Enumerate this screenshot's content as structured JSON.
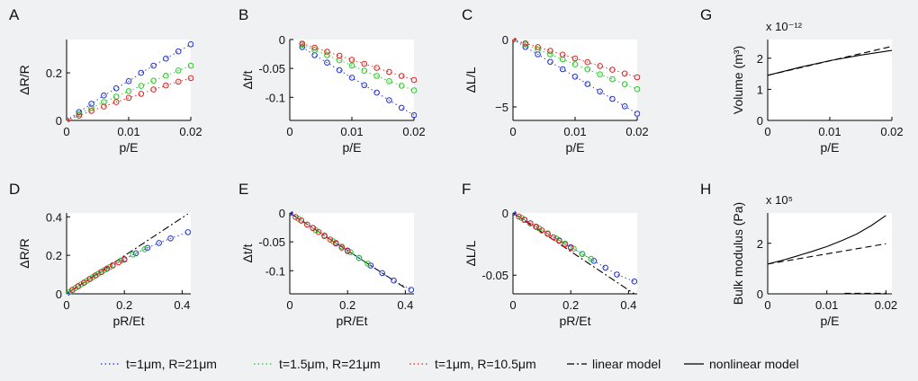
{
  "colors": {
    "blue": "#1f2fd6",
    "green": "#22cc22",
    "red": "#e02020",
    "black": "#000000",
    "background": "#f0f1f3"
  },
  "legend": {
    "position": "bottom",
    "items": [
      {
        "label": "t=1μm, R=21μm",
        "color": "#1f2fd6",
        "style": "dotted"
      },
      {
        "label": "t=1.5μm, R=21μm",
        "color": "#22cc22",
        "style": "dotted"
      },
      {
        "label": "t=1μm, R=10.5μm",
        "color": "#e02020",
        "style": "dotted"
      },
      {
        "label": "linear model",
        "color": "#000000",
        "style": "dashdot"
      },
      {
        "label": "nonlinear model",
        "color": "#000000",
        "style": "solid"
      }
    ]
  },
  "chart_data": [
    {
      "panel": "A",
      "type": "line",
      "xlabel": "p/E",
      "ylabel": "ΔR/R",
      "xlim": [
        0,
        0.02
      ],
      "ylim": [
        0,
        0.34
      ],
      "xticks": [
        0,
        0.01,
        0.02
      ],
      "xtick_labels": [
        "0",
        "0.01",
        "0.02"
      ],
      "yticks": [
        0,
        0.2
      ],
      "ytick_labels": [
        "0",
        "0.2"
      ],
      "series": [
        {
          "color": "blue",
          "x": [
            0,
            0.002,
            0.004,
            0.006,
            0.008,
            0.01,
            0.012,
            0.014,
            0.016,
            0.018,
            0.02
          ],
          "y": [
            0,
            0.035,
            0.07,
            0.105,
            0.135,
            0.165,
            0.2,
            0.23,
            0.26,
            0.29,
            0.32
          ]
        },
        {
          "color": "green",
          "x": [
            0,
            0.002,
            0.004,
            0.006,
            0.008,
            0.01,
            0.012,
            0.014,
            0.016,
            0.018,
            0.02
          ],
          "y": [
            0,
            0.026,
            0.052,
            0.077,
            0.1,
            0.123,
            0.145,
            0.167,
            0.188,
            0.21,
            0.23
          ]
        },
        {
          "color": "red",
          "x": [
            0,
            0.002,
            0.004,
            0.006,
            0.008,
            0.01,
            0.012,
            0.014,
            0.016,
            0.018,
            0.02
          ],
          "y": [
            0,
            0.02,
            0.04,
            0.058,
            0.077,
            0.095,
            0.112,
            0.13,
            0.147,
            0.163,
            0.178
          ]
        }
      ]
    },
    {
      "panel": "B",
      "type": "line",
      "xlabel": "p/E",
      "ylabel": "Δt/t",
      "xlim": [
        0,
        0.02
      ],
      "ylim": [
        -0.14,
        0
      ],
      "xticks": [
        0,
        0.01,
        0.02
      ],
      "xtick_labels": [
        "0",
        "0.01",
        "0.02"
      ],
      "yticks": [
        0,
        -0.05,
        -0.1
      ],
      "ytick_labels": [
        "0",
        "-0.05",
        "-0.1"
      ],
      "series": [
        {
          "color": "blue",
          "x": [
            0.002,
            0.004,
            0.006,
            0.008,
            0.01,
            0.012,
            0.014,
            0.016,
            0.018,
            0.02
          ],
          "y": [
            -0.013,
            -0.027,
            -0.04,
            -0.053,
            -0.066,
            -0.079,
            -0.092,
            -0.105,
            -0.118,
            -0.131
          ]
        },
        {
          "color": "green",
          "x": [
            0.002,
            0.004,
            0.006,
            0.008,
            0.01,
            0.012,
            0.014,
            0.016,
            0.018,
            0.02
          ],
          "y": [
            -0.009,
            -0.018,
            -0.027,
            -0.036,
            -0.045,
            -0.054,
            -0.063,
            -0.072,
            -0.08,
            -0.088
          ]
        },
        {
          "color": "red",
          "x": [
            0.002,
            0.004,
            0.006,
            0.008,
            0.01,
            0.012,
            0.014,
            0.016,
            0.018,
            0.02
          ],
          "y": [
            -0.007,
            -0.014,
            -0.021,
            -0.028,
            -0.035,
            -0.042,
            -0.049,
            -0.056,
            -0.063,
            -0.07
          ]
        }
      ]
    },
    {
      "panel": "C",
      "type": "line",
      "xlabel": "p/E",
      "ylabel": "ΔL/L",
      "xlim": [
        0,
        0.02
      ],
      "ylim": [
        -6,
        0
      ],
      "xticks": [
        0,
        0.01,
        0.02
      ],
      "xtick_labels": [
        "0",
        "0.01",
        "0.02"
      ],
      "yticks": [
        0,
        -5
      ],
      "ytick_labels": [
        "0",
        "−5"
      ],
      "series": [
        {
          "color": "blue",
          "x": [
            0,
            0.002,
            0.004,
            0.006,
            0.008,
            0.01,
            0.012,
            0.014,
            0.016,
            0.018,
            0.02
          ],
          "y": [
            0,
            -0.55,
            -1.1,
            -1.65,
            -2.2,
            -2.75,
            -3.3,
            -3.85,
            -4.4,
            -4.95,
            -5.5
          ]
        },
        {
          "color": "green",
          "x": [
            0,
            0.002,
            0.004,
            0.006,
            0.008,
            0.01,
            0.012,
            0.014,
            0.016,
            0.018,
            0.02
          ],
          "y": [
            0,
            -0.37,
            -0.74,
            -1.1,
            -1.47,
            -1.84,
            -2.21,
            -2.58,
            -2.94,
            -3.31,
            -3.68
          ]
        },
        {
          "color": "red",
          "x": [
            0,
            0.002,
            0.004,
            0.006,
            0.008,
            0.01,
            0.012,
            0.014,
            0.016,
            0.018,
            0.02
          ],
          "y": [
            0,
            -0.28,
            -0.56,
            -0.84,
            -1.12,
            -1.4,
            -1.68,
            -1.96,
            -2.24,
            -2.52,
            -2.8
          ]
        }
      ]
    },
    {
      "panel": "G",
      "type": "line",
      "xlabel": "p/E",
      "ylabel": "Volume (m³)",
      "y_exponent_label": "x 10⁻¹²",
      "xlim": [
        0,
        0.02
      ],
      "ylim": [
        0,
        2.6
      ],
      "xticks": [
        0,
        0.01,
        0.02
      ],
      "xtick_labels": [
        "0",
        "0.01",
        "0.02"
      ],
      "yticks": [
        0,
        1,
        2
      ],
      "ytick_labels": [
        "0",
        "1",
        "2"
      ],
      "series": [
        {
          "color": "black",
          "style": "solid",
          "x": [
            0,
            0.005,
            0.01,
            0.015,
            0.02
          ],
          "y": [
            1.45,
            1.7,
            1.92,
            2.1,
            2.25
          ]
        },
        {
          "color": "black",
          "style": "dashed",
          "x": [
            0,
            0.02
          ],
          "y": [
            1.45,
            2.38
          ]
        }
      ]
    },
    {
      "panel": "D",
      "type": "line",
      "xlabel": "pR/Et",
      "ylabel": "ΔR/R",
      "xlim": [
        0,
        0.43
      ],
      "ylim": [
        0,
        0.42
      ],
      "xticks": [
        0,
        0.2,
        0.4
      ],
      "xtick_labels": [
        "0",
        "0.2",
        "0.4"
      ],
      "yticks": [
        0,
        0.2,
        0.4
      ],
      "ytick_labels": [
        "0",
        "0.2",
        "0.4"
      ],
      "series": [
        {
          "color": "black",
          "style": "dashdot",
          "x": [
            0,
            0.42
          ],
          "y": [
            0,
            0.415
          ]
        },
        {
          "color": "blue",
          "x": [
            0,
            0.02,
            0.04,
            0.06,
            0.08,
            0.1,
            0.12,
            0.14,
            0.16,
            0.2,
            0.24,
            0.28,
            0.32,
            0.36,
            0.42
          ],
          "y": [
            0,
            0.02,
            0.039,
            0.058,
            0.077,
            0.095,
            0.113,
            0.131,
            0.148,
            0.18,
            0.211,
            0.239,
            0.264,
            0.288,
            0.32
          ]
        },
        {
          "color": "green",
          "x": [
            0.01,
            0.03,
            0.05,
            0.07,
            0.09,
            0.11,
            0.13,
            0.15,
            0.19,
            0.23,
            0.27
          ],
          "y": [
            0.01,
            0.03,
            0.049,
            0.068,
            0.087,
            0.105,
            0.123,
            0.14,
            0.174,
            0.204,
            0.232
          ]
        },
        {
          "color": "red",
          "x": [
            0.02,
            0.04,
            0.06,
            0.08,
            0.1,
            0.12,
            0.14,
            0.16,
            0.18,
            0.2
          ],
          "y": [
            0.02,
            0.039,
            0.058,
            0.077,
            0.095,
            0.113,
            0.131,
            0.148,
            0.164,
            0.178
          ]
        }
      ]
    },
    {
      "panel": "E",
      "type": "line",
      "xlabel": "pR/Et",
      "ylabel": "Δt/t",
      "xlim": [
        0,
        0.43
      ],
      "ylim": [
        -0.14,
        0
      ],
      "xticks": [
        0,
        0.2,
        0.4
      ],
      "xtick_labels": [
        "0",
        "0.2",
        "0.4"
      ],
      "yticks": [
        0,
        -0.05,
        -0.1
      ],
      "ytick_labels": [
        "0",
        "-0.05",
        "-0.1"
      ],
      "series": [
        {
          "color": "black",
          "style": "dashdot",
          "x": [
            0,
            0.4
          ],
          "y": [
            0,
            -0.13
          ]
        },
        {
          "color": "blue",
          "x": [
            0,
            0.04,
            0.08,
            0.12,
            0.16,
            0.2,
            0.24,
            0.28,
            0.32,
            0.36,
            0.42
          ],
          "y": [
            0,
            -0.013,
            -0.026,
            -0.039,
            -0.052,
            -0.065,
            -0.078,
            -0.091,
            -0.104,
            -0.117,
            -0.133
          ]
        },
        {
          "color": "green",
          "x": [
            0.03,
            0.06,
            0.09,
            0.12,
            0.15,
            0.18,
            0.21,
            0.24,
            0.27
          ],
          "y": [
            -0.01,
            -0.02,
            -0.03,
            -0.039,
            -0.049,
            -0.058,
            -0.068,
            -0.078,
            -0.088
          ]
        },
        {
          "color": "red",
          "x": [
            0.02,
            0.04,
            0.06,
            0.08,
            0.1,
            0.12,
            0.14,
            0.16,
            0.18,
            0.2
          ],
          "y": [
            -0.007,
            -0.013,
            -0.02,
            -0.026,
            -0.033,
            -0.04,
            -0.046,
            -0.053,
            -0.06,
            -0.066
          ]
        }
      ]
    },
    {
      "panel": "F",
      "type": "line",
      "xlabel": "pR/Et",
      "ylabel": "ΔL/L",
      "xlim": [
        0,
        0.43
      ],
      "ylim": [
        -0.065,
        0
      ],
      "xticks": [
        0,
        0.2,
        0.4
      ],
      "xtick_labels": [
        "0",
        "0.2",
        "0.4"
      ],
      "yticks": [
        0,
        -0.05
      ],
      "ytick_labels": [
        "0",
        "-0.05"
      ],
      "series": [
        {
          "color": "black",
          "style": "dashdot",
          "x": [
            0,
            0.42
          ],
          "y": [
            0,
            -0.065
          ]
        },
        {
          "color": "blue",
          "x": [
            0,
            0.04,
            0.08,
            0.12,
            0.16,
            0.2,
            0.24,
            0.28,
            0.32,
            0.36,
            0.42
          ],
          "y": [
            0,
            -0.0055,
            -0.011,
            -0.0165,
            -0.022,
            -0.0275,
            -0.033,
            -0.0385,
            -0.044,
            -0.0495,
            -0.055
          ]
        },
        {
          "color": "green",
          "x": [
            0.03,
            0.06,
            0.09,
            0.12,
            0.15,
            0.18,
            0.21,
            0.24,
            0.27
          ],
          "y": [
            -0.004,
            -0.0082,
            -0.0123,
            -0.0164,
            -0.0205,
            -0.0246,
            -0.0287,
            -0.0328,
            -0.0368
          ]
        },
        {
          "color": "red",
          "x": [
            0.02,
            0.04,
            0.06,
            0.08,
            0.1,
            0.12,
            0.14,
            0.16,
            0.18,
            0.2
          ],
          "y": [
            -0.0028,
            -0.0056,
            -0.0084,
            -0.0112,
            -0.014,
            -0.0168,
            -0.0196,
            -0.0224,
            -0.0252,
            -0.028
          ]
        }
      ]
    },
    {
      "panel": "H",
      "type": "line",
      "xlabel": "p/E",
      "ylabel": "Bulk modulus (Pa)",
      "y_exponent_label": "x 10⁵",
      "xlim": [
        0,
        0.021
      ],
      "ylim": [
        0,
        3.2
      ],
      "xticks": [
        0,
        0.01,
        0.02
      ],
      "xtick_labels": [
        "0",
        "0.01",
        "0.02"
      ],
      "yticks": [
        0,
        2
      ],
      "ytick_labels": [
        "0",
        "2"
      ],
      "series": [
        {
          "color": "black",
          "style": "solid",
          "x": [
            0,
            0.0025,
            0.005,
            0.0075,
            0.01,
            0.0125,
            0.015,
            0.0175,
            0.02
          ],
          "y": [
            1.18,
            1.33,
            1.5,
            1.68,
            1.87,
            2.1,
            2.36,
            2.7,
            3.1
          ]
        },
        {
          "color": "black",
          "style": "dashed",
          "x": [
            0,
            0.02
          ],
          "y": [
            1.18,
            1.98
          ]
        },
        {
          "color": "black",
          "style": "dashed",
          "x": [
            0.013,
            0.02
          ],
          "y": [
            0.02,
            0.02
          ]
        }
      ]
    }
  ]
}
